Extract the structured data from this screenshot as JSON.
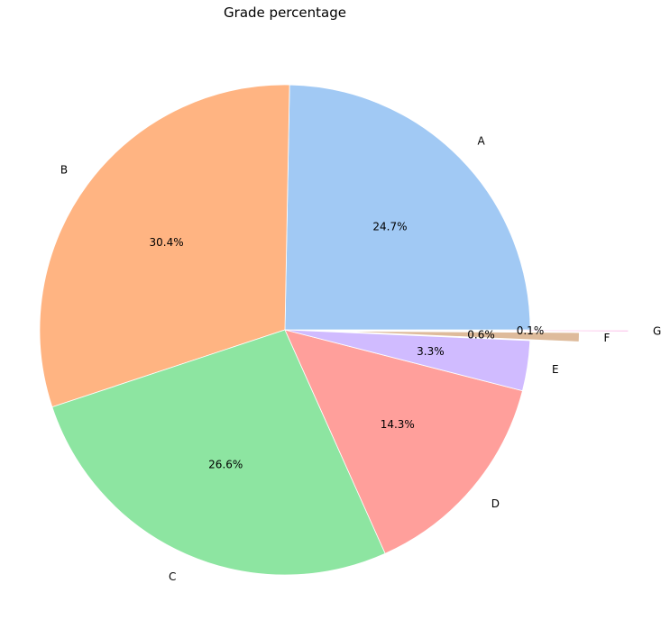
{
  "chart_data": {
    "type": "pie",
    "title": "Grade percentage",
    "categories": [
      "A",
      "B",
      "C",
      "D",
      "E",
      "F",
      "G"
    ],
    "values": [
      24.7,
      30.4,
      26.6,
      14.3,
      3.3,
      0.6,
      0.1
    ],
    "value_labels": [
      "24.7%",
      "30.4%",
      "26.6%",
      "14.3%",
      "3.3%",
      "0.6%",
      "0.1%"
    ],
    "colors": [
      "#a1c9f4",
      "#ffb482",
      "#8de5a1",
      "#ff9f9b",
      "#d0bbff",
      "#debb9b",
      "#fab0e4"
    ],
    "explode": [
      0,
      0,
      0,
      0,
      0,
      0.2,
      0.4
    ],
    "start_angle": 0,
    "direction": "counterclockwise",
    "legend": "none"
  }
}
